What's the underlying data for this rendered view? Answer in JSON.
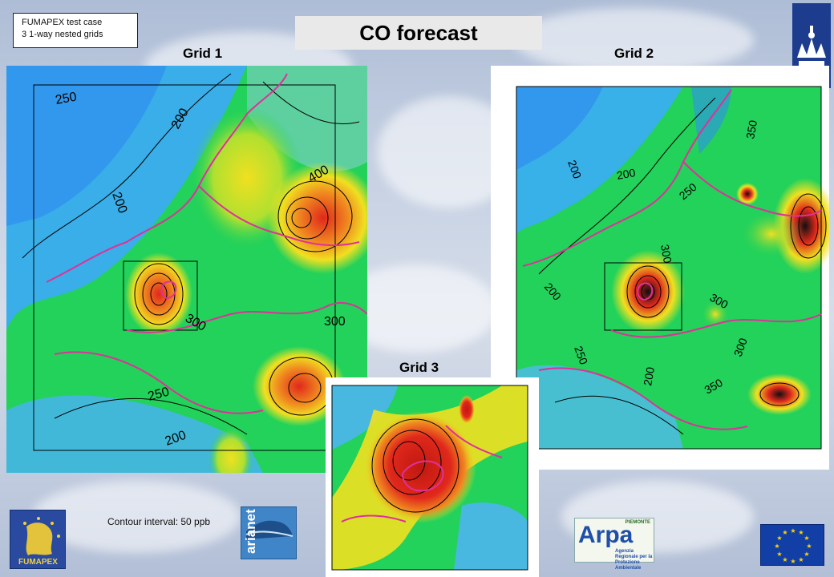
{
  "header": {
    "info_line1": "FUMAPEX test case",
    "info_line2": "3 1-way nested grids",
    "title": "CO forecast"
  },
  "grids": {
    "grid1": {
      "label": "Grid 1",
      "contour_labels": [
        "250",
        "200",
        "200",
        "400",
        "300",
        "300",
        "250",
        "200"
      ]
    },
    "grid2": {
      "label": "Grid 2",
      "contour_labels": [
        "350",
        "200",
        "200",
        "250",
        "300",
        "200",
        "300",
        "250",
        "200",
        "300",
        "350"
      ]
    },
    "grid3": {
      "label": "Grid 3"
    }
  },
  "footer": {
    "contour_interval": "Contour interval: 50 ppb"
  },
  "logos": {
    "fumapex": "FUMAPEX",
    "arianet": "arianet",
    "arpa": "Arpa",
    "arpa_region": "PIEMONTE",
    "arpa_subtitle": "Agenzia Regionale per la Protezione Ambientale"
  },
  "colors": {
    "low": "#2f8ff0",
    "mid": "#22d25a",
    "high": "#f0e020",
    "peak": "#e0281c",
    "border": "#e0309a"
  }
}
